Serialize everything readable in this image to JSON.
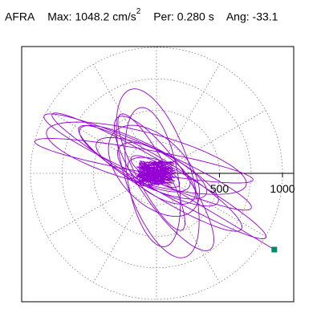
{
  "header": {
    "station": "AFRA",
    "max_label": "Max:",
    "max_value": "1048.2",
    "max_unit": "cm/s",
    "max_exp": "2",
    "per_label": "Per:",
    "per_value": "0.280 s",
    "ang_label": "Ang:",
    "ang_value": "-33.1"
  },
  "colors": {
    "trace": "#9400d3",
    "end_marker": "#008b6b",
    "grid": "#808080",
    "axis": "#000000",
    "frame": "#000000"
  },
  "chart_data": {
    "type": "scatter",
    "subtype": "polar particle motion (acceleration)",
    "radial_unit": "cm/s^2",
    "radial_rings": [
      250,
      500,
      750,
      1000
    ],
    "radial_range": [
      0,
      1000
    ],
    "tick_labels": [
      {
        "value": 500,
        "text": "500"
      },
      {
        "value": 1000,
        "text": "1000"
      }
    ],
    "spoke_angles_deg": [
      0,
      30,
      60,
      90,
      120,
      150,
      180,
      210,
      240,
      270,
      300,
      330
    ],
    "grid": true,
    "max_amplitude": 1048.2,
    "dominant_period_s": 0.28,
    "dominant_angle_deg": -33.1,
    "end_point": {
      "x": 935,
      "y": -605
    },
    "trace_loops": [
      {
        "a": 220,
        "b": 70,
        "rot_deg": -30,
        "n": 1,
        "phase": 0.1,
        "dx": -10,
        "dy": 15
      },
      {
        "a": 260,
        "b": 110,
        "rot_deg": -20,
        "n": 1,
        "phase": 1.2,
        "dx": 20,
        "dy": -10
      },
      {
        "a": 360,
        "b": 160,
        "rot_deg": -35,
        "n": 1,
        "phase": 0.6,
        "dx": 0,
        "dy": 0
      },
      {
        "a": 480,
        "b": 150,
        "rot_deg": -25,
        "n": 1,
        "phase": 2.0,
        "dx": -40,
        "dy": 40
      },
      {
        "a": 620,
        "b": 150,
        "rot_deg": -28,
        "n": 1,
        "phase": 0.3,
        "dx": -60,
        "dy": 60
      },
      {
        "a": 760,
        "b": 140,
        "rot_deg": -32,
        "n": 1,
        "phase": 2.6,
        "dx": 30,
        "dy": -40
      },
      {
        "a": 900,
        "b": 120,
        "rot_deg": -24,
        "n": 1,
        "phase": 1.7,
        "dx": -70,
        "dy": 90
      },
      {
        "a": 980,
        "b": 110,
        "rot_deg": -30,
        "n": 1,
        "phase": 0.9,
        "dx": 20,
        "dy": -20
      },
      {
        "a": 700,
        "b": 260,
        "rot_deg": -72,
        "n": 1,
        "phase": 1.4,
        "dx": 10,
        "dy": 0
      },
      {
        "a": 560,
        "b": 200,
        "rot_deg": -80,
        "n": 1,
        "phase": 2.9,
        "dx": -30,
        "dy": -30
      },
      {
        "a": 640,
        "b": 180,
        "rot_deg": -55,
        "n": 1,
        "phase": 0.0,
        "dx": 60,
        "dy": -80
      },
      {
        "a": 440,
        "b": 260,
        "rot_deg": -45,
        "n": 1,
        "phase": 2.2,
        "dx": -20,
        "dy": 20
      },
      {
        "a": 820,
        "b": 200,
        "rot_deg": -15,
        "n": 1,
        "phase": 1.0,
        "dx": -80,
        "dy": 120
      },
      {
        "a": 880,
        "b": 90,
        "rot_deg": -10,
        "n": 1,
        "phase": 2.4,
        "dx": -100,
        "dy": 100
      },
      {
        "a": 520,
        "b": 120,
        "rot_deg": -62,
        "n": 1,
        "phase": 0.5,
        "dx": -40,
        "dy": 10
      }
    ]
  }
}
